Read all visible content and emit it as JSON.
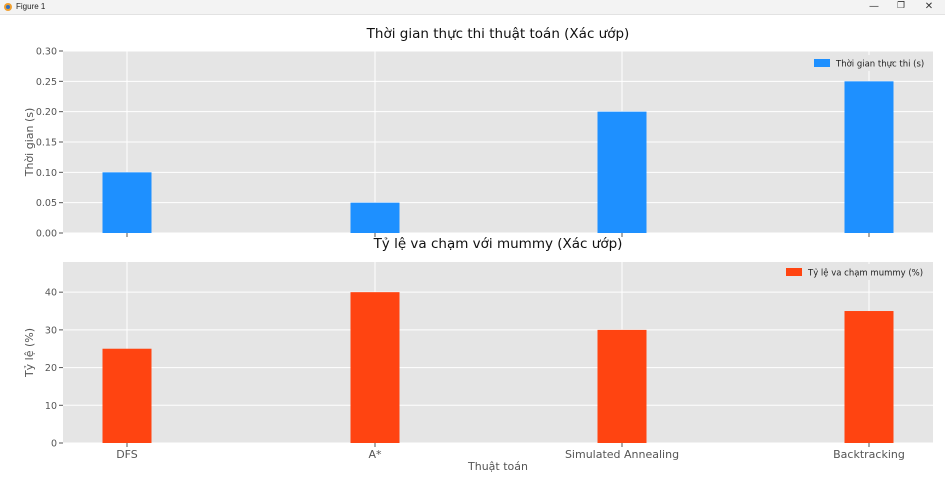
{
  "window": {
    "title": "Figure 1",
    "controls": {
      "minimize": "—",
      "maximize": "❐",
      "close": "✕"
    }
  },
  "colors": {
    "series1": "#1e90ff",
    "series2": "#ff4411",
    "plot_bg": "#e5e5e5",
    "grid": "#ffffff"
  },
  "chart_data": [
    {
      "type": "bar",
      "title": "Thời gian thực thi thuật toán (Xác ướp)",
      "xlabel": "",
      "ylabel": "Thời gian (s)",
      "categories": [
        "DFS",
        "A*",
        "Simulated Annealing",
        "Backtracking"
      ],
      "series": [
        {
          "name": "Thời gian thực thi (s)",
          "values": [
            0.1,
            0.05,
            0.2,
            0.25
          ]
        }
      ],
      "ylim": [
        0,
        0.3
      ],
      "yticks": [
        0.0,
        0.05,
        0.1,
        0.15,
        0.2,
        0.25,
        0.3
      ],
      "ytick_labels": [
        "0.00",
        "0.05",
        "0.10",
        "0.15",
        "0.20",
        "0.25",
        "0.30"
      ],
      "show_xtick_labels": false,
      "grid": true,
      "legend_position": "top-right"
    },
    {
      "type": "bar",
      "title": "Tỷ lệ va chạm với mummy (Xác ướp)",
      "xlabel": "Thuật toán",
      "ylabel": "Tỷ lệ (%)",
      "categories": [
        "DFS",
        "A*",
        "Simulated Annealing",
        "Backtracking"
      ],
      "series": [
        {
          "name": "Tỷ lệ va chạm mummy (%)",
          "values": [
            25,
            40,
            30,
            35
          ]
        }
      ],
      "ylim": [
        0,
        48
      ],
      "yticks": [
        0,
        10,
        20,
        30,
        40
      ],
      "ytick_labels": [
        "0",
        "10",
        "20",
        "30",
        "40"
      ],
      "show_xtick_labels": true,
      "grid": true,
      "legend_position": "top-right"
    }
  ]
}
